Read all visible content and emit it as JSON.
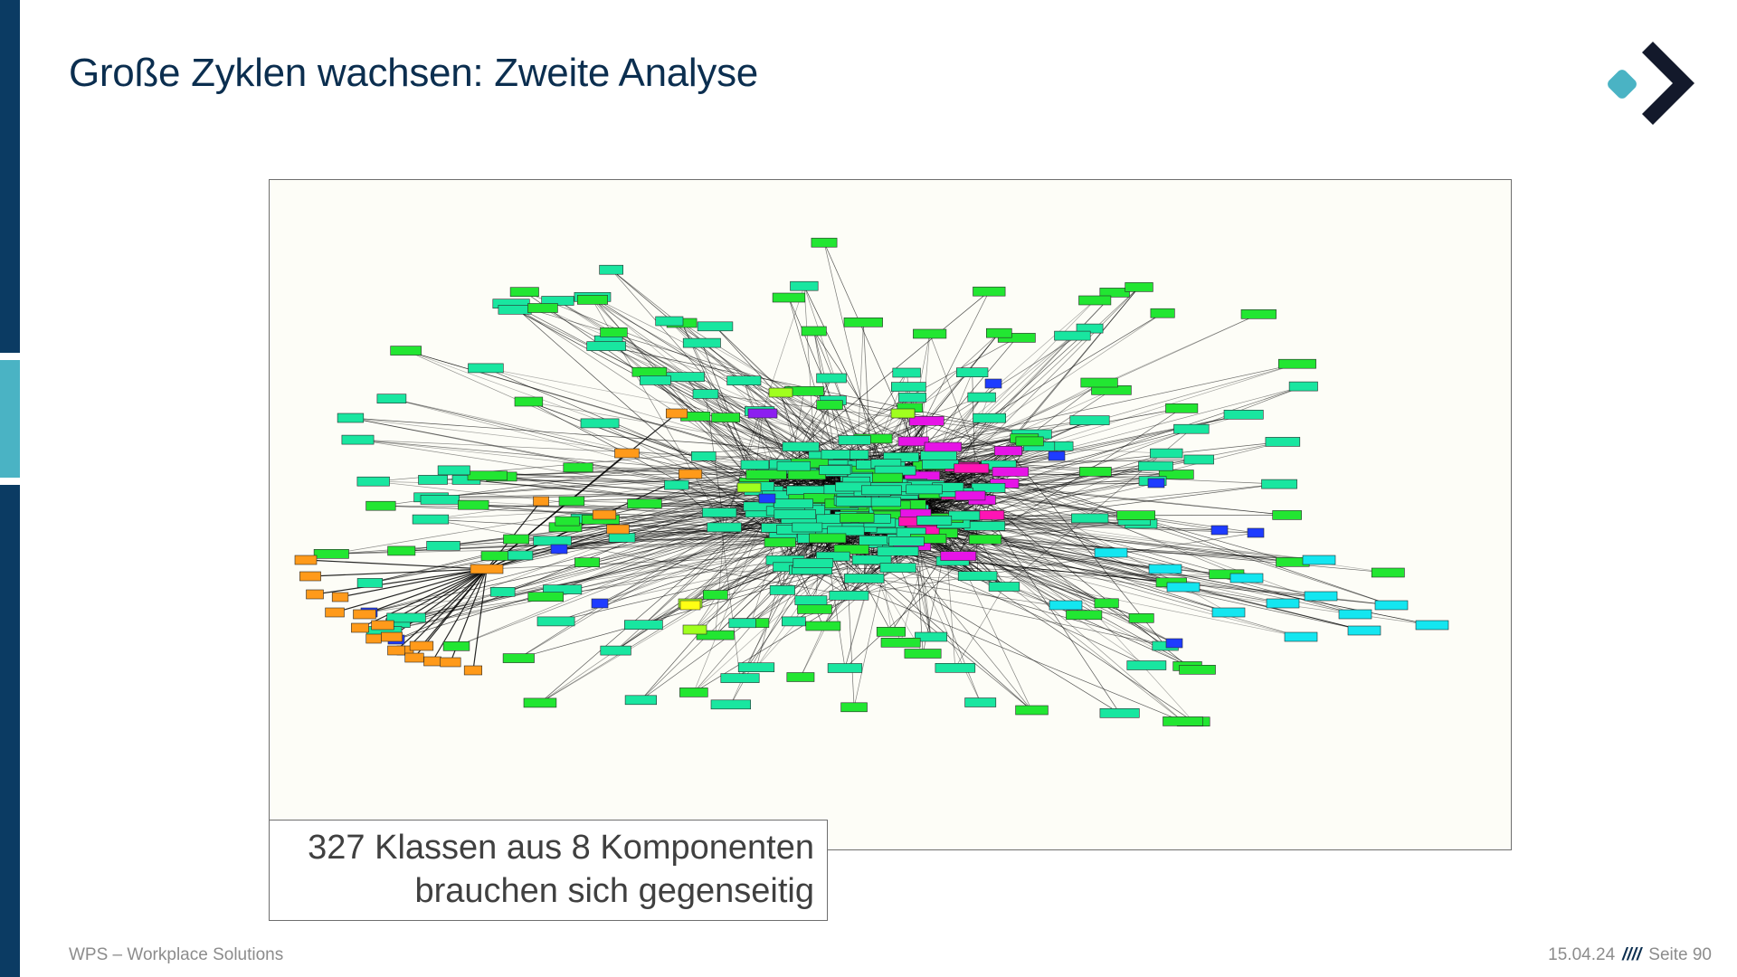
{
  "slide": {
    "title": "Große Zyklen wachsen: Zweite Analyse",
    "caption_line1": "327 Klassen aus 8 Komponenten",
    "caption_line2": "brauchen sich gegenseitig"
  },
  "footer": {
    "company": "WPS – Workplace Solutions",
    "date": "15.04.24",
    "separator": "////",
    "page": "Seite 90"
  },
  "colors": {
    "brand_navy": "#0b3b63",
    "brand_teal": "#4ab3c4",
    "logo_dark": "#13192b",
    "graph_background": "#fdfdf7",
    "component_colors": [
      "#19e6a0",
      "#22e632",
      "#ff9a1a",
      "#ff14b4",
      "#e614e6",
      "#1e3cff",
      "#14e6f0",
      "#1e96e6",
      "#a0ff1e",
      "#ffff14",
      "#8c1ef0"
    ]
  },
  "icons": {
    "logo": "wps-chevron-logo"
  }
}
